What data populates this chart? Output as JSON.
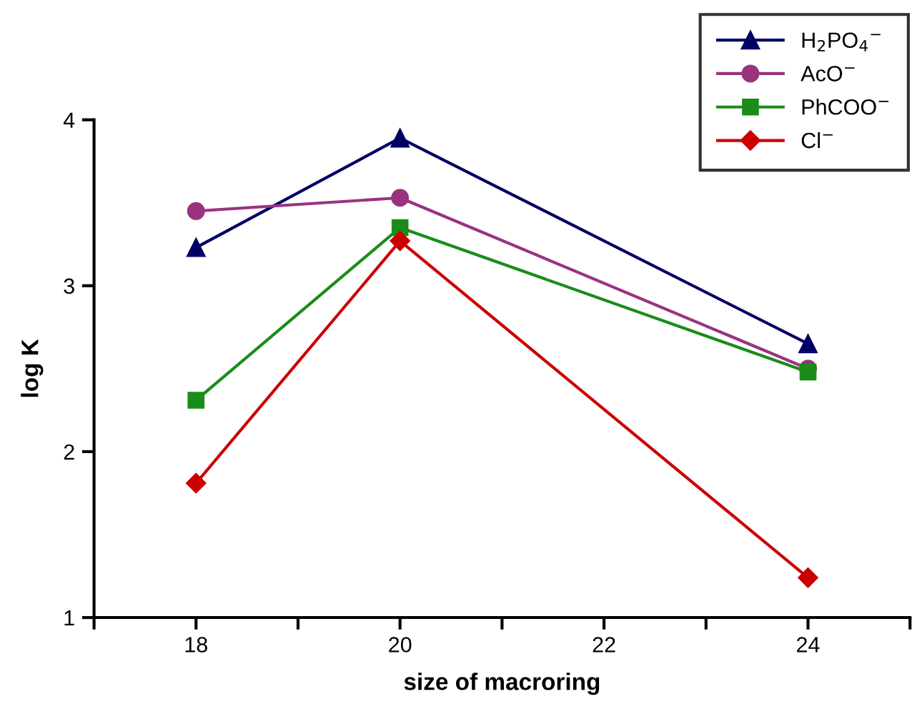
{
  "chart_data": {
    "type": "line",
    "xlabel": "size of macroring",
    "ylabel": "log K",
    "x": [
      18,
      20,
      24
    ],
    "series": [
      {
        "name": "H$_{2}$PO$_{4}$$^{−}$",
        "color": "#000066",
        "marker": "triangle",
        "values": [
          3.23,
          3.89,
          2.65
        ]
      },
      {
        "name": "AcO$^{−}$",
        "color": "#993380",
        "marker": "circle",
        "values": [
          3.45,
          3.53,
          2.5
        ]
      },
      {
        "name": "PhCOO$^{−}$",
        "color": "#1a8c1a",
        "marker": "square",
        "values": [
          2.31,
          3.35,
          2.48
        ]
      },
      {
        "name": "Cl$^{−}$",
        "color": "#cc0000",
        "marker": "diamond",
        "values": [
          1.81,
          3.27,
          1.24
        ]
      }
    ],
    "xlim": [
      17,
      25
    ],
    "xticks": [
      {
        "value": 17,
        "label": null
      },
      18,
      {
        "value": 19,
        "label": null
      },
      20,
      {
        "value": 21,
        "label": null
      },
      22,
      {
        "value": 23,
        "label": null
      },
      24,
      {
        "value": 25,
        "label": null
      }
    ],
    "ylim": [
      1,
      4
    ],
    "yticks": [
      1,
      2,
      3,
      4
    ],
    "grid": false,
    "legend": "top right",
    "line_style": "solid"
  }
}
